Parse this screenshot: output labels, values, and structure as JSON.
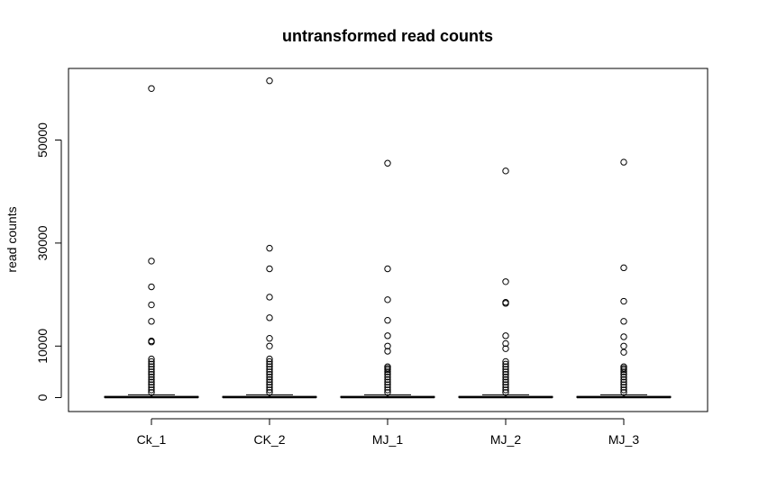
{
  "chart_data": {
    "type": "box",
    "title": "untransformed read counts",
    "xlabel": "",
    "ylabel": "read counts",
    "ylim": [
      -2500,
      62500
    ],
    "yticks": [
      0,
      10000,
      30000,
      50000
    ],
    "grid": false,
    "categories": [
      "Ck_1",
      "CK_2",
      "MJ_1",
      "MJ_2",
      "MJ_3"
    ],
    "series": [
      {
        "box": {
          "min": 0,
          "q1": 20,
          "median": 80,
          "q3": 220,
          "max": 550
        },
        "outliers": [
          60000,
          26500,
          21500,
          18000,
          14800,
          11000,
          10800,
          7500,
          7000,
          6500,
          6000,
          5500,
          5000,
          4500,
          4000,
          3500,
          3000,
          2500,
          2000,
          1500,
          1000
        ]
      },
      {
        "box": {
          "min": 0,
          "q1": 20,
          "median": 80,
          "q3": 220,
          "max": 550
        },
        "outliers": [
          61500,
          29000,
          25000,
          19500,
          15500,
          11500,
          10000,
          7500,
          7000,
          6500,
          6000,
          5500,
          5000,
          4500,
          4000,
          3500,
          3000,
          2500,
          2000,
          1500,
          1000
        ]
      },
      {
        "box": {
          "min": 0,
          "q1": 20,
          "median": 80,
          "q3": 220,
          "max": 550
        },
        "outliers": [
          45500,
          25000,
          19000,
          15000,
          12000,
          10000,
          9000,
          6000,
          5700,
          5400,
          5000,
          4500,
          4000,
          3500,
          3000,
          2500,
          2000,
          1500,
          1000
        ]
      },
      {
        "box": {
          "min": 0,
          "q1": 20,
          "median": 80,
          "q3": 220,
          "max": 550
        },
        "outliers": [
          44000,
          22500,
          18500,
          18300,
          12000,
          10500,
          9500,
          7000,
          6500,
          6000,
          5500,
          5000,
          4500,
          4000,
          3500,
          3000,
          2500,
          2000,
          1500,
          1000
        ]
      },
      {
        "box": {
          "min": 0,
          "q1": 20,
          "median": 80,
          "q3": 220,
          "max": 550
        },
        "outliers": [
          45700,
          25200,
          18700,
          14800,
          11800,
          10000,
          8800,
          6000,
          5700,
          5400,
          5000,
          4500,
          4000,
          3500,
          3000,
          2500,
          2000,
          1500,
          1000
        ]
      }
    ]
  }
}
